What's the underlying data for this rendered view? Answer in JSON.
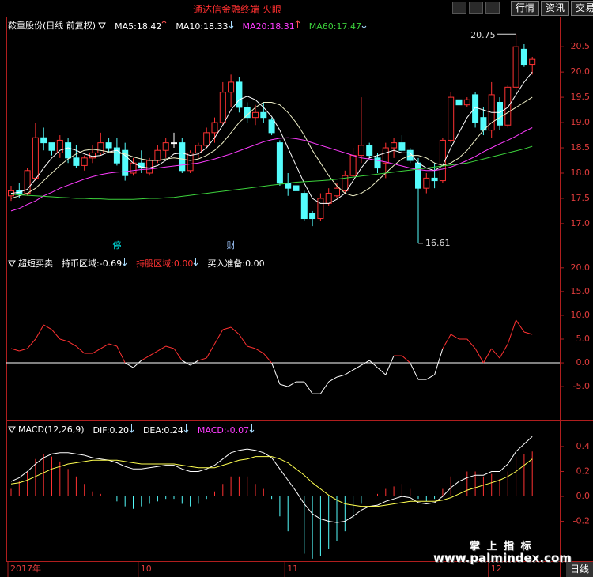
{
  "app": {
    "title": "通达信金融终端 火眼",
    "menu": [
      "行情",
      "资讯",
      "交易"
    ],
    "period": "日线"
  },
  "x_axis": {
    "ticks": [
      {
        "value": 0,
        "label": "2017年"
      },
      {
        "value": 16,
        "label": "10"
      },
      {
        "value": 34,
        "label": "11"
      },
      {
        "value": 59,
        "label": "12"
      }
    ]
  },
  "watermark": {
    "title": "掌 上 指 标",
    "url": "www.palmindex.com"
  },
  "chart_data": [
    {
      "type": "candlestick",
      "title": "鞍重股份(日线 前复权)",
      "up_color": "#ff3232",
      "down_color": "#54fcfc",
      "flat_color": "#ffffff",
      "open": [
        17.55,
        17.65,
        17.6,
        17.9,
        18.7,
        18.6,
        18.4,
        18.6,
        18.3,
        18.15,
        18.3,
        18.4,
        18.6,
        18.5,
        18.45,
        18.0,
        18.2,
        18.0,
        18.25,
        18.45,
        18.6,
        18.6,
        18.05,
        18.4,
        18.55,
        18.8,
        19.0,
        19.6,
        19.8,
        19.3,
        19.1,
        19.2,
        19.05,
        18.6,
        17.8,
        17.75,
        17.6,
        17.2,
        17.1,
        17.4,
        17.55,
        17.65,
        17.95,
        18.35,
        18.55,
        18.3,
        18.2,
        18.5,
        18.6,
        18.45,
        18.2,
        17.7,
        17.9,
        17.85,
        18.65,
        19.45,
        19.35,
        19.55,
        19.1,
        18.85,
        19.4,
        18.95,
        19.7,
        20.45,
        20.15
      ],
      "high": [
        17.75,
        17.8,
        18.1,
        19.0,
        18.9,
        18.6,
        18.75,
        18.7,
        18.55,
        18.35,
        18.55,
        18.8,
        18.7,
        18.7,
        18.6,
        18.3,
        18.45,
        18.3,
        18.55,
        18.7,
        18.8,
        18.7,
        18.45,
        18.6,
        18.9,
        19.1,
        19.8,
        19.95,
        19.9,
        19.4,
        19.35,
        19.4,
        19.1,
        18.65,
        18.0,
        17.9,
        17.65,
        17.25,
        17.6,
        17.7,
        17.8,
        18.05,
        18.5,
        19.5,
        18.6,
        18.4,
        18.6,
        18.7,
        18.75,
        18.5,
        18.3,
        18.0,
        18.2,
        18.7,
        19.6,
        19.5,
        19.5,
        19.6,
        19.3,
        19.8,
        19.5,
        19.75,
        20.75,
        20.55,
        20.3
      ],
      "low": [
        17.45,
        17.5,
        17.55,
        17.85,
        18.45,
        18.35,
        18.3,
        18.2,
        18.1,
        18.05,
        18.2,
        18.35,
        18.4,
        18.15,
        17.85,
        17.95,
        18.0,
        17.95,
        18.2,
        18.3,
        18.5,
        18.0,
        18.0,
        18.3,
        18.5,
        18.6,
        18.95,
        19.3,
        19.2,
        19.0,
        18.95,
        19.0,
        18.75,
        17.75,
        17.55,
        17.6,
        17.05,
        16.95,
        17.05,
        17.35,
        17.5,
        17.6,
        17.9,
        18.2,
        18.3,
        18.0,
        17.9,
        18.3,
        18.4,
        18.2,
        16.61,
        17.6,
        17.7,
        17.8,
        18.6,
        19.3,
        19.3,
        18.9,
        18.75,
        18.7,
        18.85,
        18.9,
        19.6,
        20.1,
        19.95
      ],
      "close": [
        17.65,
        17.6,
        18.05,
        18.7,
        18.6,
        18.45,
        18.65,
        18.3,
        18.15,
        18.3,
        18.4,
        18.6,
        18.5,
        18.2,
        17.95,
        18.2,
        18.1,
        18.25,
        18.45,
        18.6,
        18.6,
        18.05,
        18.4,
        18.55,
        18.8,
        19.0,
        19.6,
        19.8,
        19.3,
        19.1,
        19.2,
        19.1,
        18.8,
        17.8,
        17.7,
        17.65,
        17.1,
        17.1,
        17.5,
        17.6,
        17.7,
        17.95,
        18.35,
        18.55,
        18.35,
        18.1,
        18.5,
        18.6,
        18.45,
        18.25,
        17.7,
        17.9,
        17.85,
        18.65,
        19.5,
        19.35,
        19.45,
        19.0,
        18.85,
        19.55,
        18.95,
        19.7,
        20.5,
        20.15,
        20.25
      ],
      "series": [
        {
          "name": "MA5:",
          "readout": "18.42",
          "trend": "up",
          "color": "#ffffff",
          "values": [
            17.6,
            17.62,
            17.68,
            17.88,
            18.1,
            18.3,
            18.45,
            18.5,
            18.45,
            18.38,
            18.33,
            18.35,
            18.42,
            18.45,
            18.35,
            18.2,
            18.12,
            18.1,
            18.15,
            18.25,
            18.38,
            18.4,
            18.35,
            18.38,
            18.5,
            18.7,
            18.95,
            19.25,
            19.45,
            19.52,
            19.45,
            19.3,
            19.12,
            18.85,
            18.5,
            18.15,
            17.8,
            17.5,
            17.4,
            17.4,
            17.48,
            17.6,
            17.85,
            18.1,
            18.3,
            18.35,
            18.4,
            18.45,
            18.4,
            18.4,
            18.2,
            18.1,
            18.05,
            18.15,
            18.5,
            18.8,
            19.1,
            19.3,
            19.25,
            19.2,
            19.2,
            19.3,
            19.55,
            19.8,
            20.0
          ]
        },
        {
          "name": "MA10:",
          "readout": "18.33",
          "trend": "down",
          "color": "#f0f0c8",
          "values": [
            17.5,
            17.55,
            17.6,
            17.7,
            17.85,
            18.0,
            18.15,
            18.28,
            18.38,
            18.45,
            18.47,
            18.45,
            18.42,
            18.4,
            18.38,
            18.32,
            18.28,
            18.25,
            18.25,
            18.28,
            18.3,
            18.28,
            18.25,
            18.28,
            18.35,
            18.45,
            18.6,
            18.8,
            19.0,
            19.15,
            19.3,
            19.4,
            19.4,
            19.35,
            19.2,
            19.0,
            18.75,
            18.45,
            18.2,
            17.95,
            17.75,
            17.6,
            17.55,
            17.6,
            17.7,
            17.85,
            18.0,
            18.15,
            18.28,
            18.35,
            18.35,
            18.3,
            18.2,
            18.15,
            18.2,
            18.3,
            18.45,
            18.65,
            18.85,
            19.0,
            19.1,
            19.2,
            19.3,
            19.4,
            19.5
          ]
        },
        {
          "name": "MA20:",
          "readout": "18.31",
          "trend": "up",
          "color": "#ff3cff",
          "values": [
            17.25,
            17.3,
            17.38,
            17.45,
            17.55,
            17.62,
            17.7,
            17.76,
            17.82,
            17.88,
            17.93,
            17.97,
            18.0,
            18.02,
            18.03,
            18.05,
            18.07,
            18.08,
            18.1,
            18.12,
            18.14,
            18.16,
            18.18,
            18.2,
            18.24,
            18.28,
            18.33,
            18.38,
            18.44,
            18.5,
            18.56,
            18.62,
            18.66,
            18.69,
            18.7,
            18.68,
            18.65,
            18.6,
            18.55,
            18.5,
            18.45,
            18.4,
            18.35,
            18.3,
            18.28,
            18.25,
            18.22,
            18.18,
            18.14,
            18.1,
            18.07,
            18.05,
            18.05,
            18.08,
            18.12,
            18.18,
            18.25,
            18.33,
            18.42,
            18.5,
            18.58,
            18.65,
            18.73,
            18.82,
            18.9
          ]
        },
        {
          "name": "MA60:",
          "readout": "17.47",
          "trend": "down",
          "color": "#3cd23c",
          "values": [
            17.58,
            17.57,
            17.56,
            17.55,
            17.54,
            17.53,
            17.52,
            17.51,
            17.5,
            17.5,
            17.49,
            17.49,
            17.48,
            17.48,
            17.48,
            17.48,
            17.49,
            17.5,
            17.5,
            17.51,
            17.52,
            17.54,
            17.56,
            17.58,
            17.6,
            17.62,
            17.64,
            17.66,
            17.68,
            17.7,
            17.72,
            17.74,
            17.76,
            17.78,
            17.8,
            17.82,
            17.83,
            17.84,
            17.85,
            17.86,
            17.88,
            17.9,
            17.92,
            17.94,
            17.96,
            17.98,
            18.0,
            18.02,
            18.04,
            18.06,
            18.08,
            18.1,
            18.12,
            18.14,
            18.16,
            18.18,
            18.2,
            18.24,
            18.28,
            18.32,
            18.36,
            18.4,
            18.44,
            18.48,
            18.53
          ]
        }
      ],
      "annotations": [
        {
          "label": "20.75",
          "value": 20.75,
          "index": 62
        },
        {
          "label": "16.61",
          "value": 16.61,
          "index": 50
        }
      ],
      "events": [
        {
          "label": "停",
          "index": 13,
          "color": "#00e0e0"
        },
        {
          "label": "财",
          "index": 27,
          "color": "#a0c8ff"
        }
      ],
      "ylim": [
        16.42,
        20.8
      ],
      "yticks": [
        {
          "value": 17,
          "label": "17.0"
        },
        17.5,
        {
          "value": 18,
          "label": "18.0"
        },
        18.5,
        {
          "value": 19,
          "label": "19.0"
        },
        19.5,
        {
          "value": 20,
          "label": "20.0"
        },
        20.5
      ]
    },
    {
      "type": "line",
      "title": "超短买卖",
      "readouts": [
        {
          "name": "持币区域:",
          "value": "-0.69",
          "trend": "down",
          "color": "#ffffff"
        },
        {
          "name": "持股区域:",
          "value": "0.00",
          "trend": "down",
          "color": "#ff3232"
        },
        {
          "name": "买入准备:",
          "value": "0.00",
          "color": "#ffffff"
        }
      ],
      "values": [
        3,
        2.5,
        3,
        5,
        8,
        7,
        5,
        4.5,
        3.5,
        2,
        2,
        3,
        4,
        3.5,
        0,
        -1,
        0.5,
        1.5,
        2.5,
        3.5,
        3,
        0.5,
        -0.5,
        0.5,
        1,
        4,
        7,
        7.5,
        6,
        3.5,
        3,
        2,
        0,
        -4.5,
        -5,
        -4,
        -4,
        -6.5,
        -6.5,
        -4,
        -3,
        -2.5,
        -1.5,
        -0.5,
        0.5,
        -1,
        -2.5,
        1.5,
        1.5,
        0,
        -3.5,
        -3.5,
        -2.5,
        3,
        6,
        5,
        5,
        3,
        0,
        3,
        1,
        4,
        9,
        6.5,
        6
      ],
      "positive_color": "#ff3232",
      "negative_color": "#ffffff",
      "zero_line_color": "#ffffff",
      "ylim": [
        -11.8,
        21.8
      ],
      "yticks": [
        {
          "value": 20,
          "label": "20.0"
        },
        {
          "value": 15,
          "label": "15.0"
        },
        {
          "value": 10,
          "label": "10.0"
        },
        {
          "value": 5,
          "label": "5.0"
        },
        {
          "value": 0,
          "label": "0.0"
        },
        {
          "value": -5,
          "label": "-5.0"
        }
      ]
    },
    {
      "type": "macd",
      "title": "MACD(12,26,9)",
      "series": [
        {
          "name": "DIF:",
          "readout": "0.20",
          "trend": "down",
          "color": "#ffffff",
          "text_color": "#ffffff",
          "values": [
            0.12,
            0.15,
            0.2,
            0.26,
            0.31,
            0.34,
            0.35,
            0.35,
            0.34,
            0.33,
            0.31,
            0.3,
            0.29,
            0.27,
            0.24,
            0.22,
            0.22,
            0.23,
            0.24,
            0.25,
            0.25,
            0.22,
            0.2,
            0.2,
            0.22,
            0.25,
            0.3,
            0.35,
            0.37,
            0.38,
            0.37,
            0.35,
            0.31,
            0.22,
            0.13,
            0.04,
            -0.06,
            -0.14,
            -0.18,
            -0.2,
            -0.21,
            -0.2,
            -0.16,
            -0.11,
            -0.08,
            -0.07,
            -0.04,
            -0.02,
            0,
            -0.01,
            -0.05,
            -0.06,
            -0.05,
            0,
            0.07,
            0.12,
            0.15,
            0.17,
            0.17,
            0.2,
            0.2,
            0.26,
            0.36,
            0.42,
            0.48
          ]
        },
        {
          "name": "DEA:",
          "readout": "0.24",
          "trend": "down",
          "color": "#ffff50",
          "text_color": "#ffffff",
          "values": [
            0.1,
            0.11,
            0.13,
            0.16,
            0.19,
            0.22,
            0.24,
            0.26,
            0.27,
            0.28,
            0.29,
            0.29,
            0.29,
            0.29,
            0.28,
            0.27,
            0.26,
            0.26,
            0.26,
            0.26,
            0.26,
            0.25,
            0.24,
            0.23,
            0.23,
            0.23,
            0.25,
            0.27,
            0.29,
            0.3,
            0.32,
            0.32,
            0.32,
            0.3,
            0.27,
            0.22,
            0.17,
            0.11,
            0.06,
            0.01,
            -0.03,
            -0.06,
            -0.07,
            -0.08,
            -0.08,
            -0.08,
            -0.07,
            -0.06,
            -0.05,
            -0.04,
            -0.04,
            -0.04,
            -0.04,
            -0.03,
            -0.01,
            0.02,
            0.05,
            0.07,
            0.09,
            0.11,
            0.13,
            0.16,
            0.2,
            0.25,
            0.3
          ]
        },
        {
          "name": "MACD:",
          "readout": "-0.07",
          "trend": "down",
          "color": "#ff3cff",
          "text_color": "#ff3cff",
          "style": "histogram",
          "values": [
            0.06,
            0.12,
            0.2,
            0.3,
            0.34,
            0.32,
            0.28,
            0.22,
            0.16,
            0.1,
            0.04,
            0.02,
            0,
            -0.04,
            -0.08,
            -0.1,
            -0.08,
            -0.06,
            -0.04,
            -0.02,
            -0.02,
            -0.06,
            -0.08,
            -0.06,
            -0.02,
            0.04,
            0.1,
            0.16,
            0.16,
            0.16,
            0.1,
            0.06,
            -0.02,
            -0.16,
            -0.28,
            -0.36,
            -0.46,
            -0.5,
            -0.48,
            -0.42,
            -0.36,
            -0.28,
            -0.18,
            -0.06,
            0,
            0.02,
            0.06,
            0.08,
            0.1,
            0.06,
            -0.02,
            -0.04,
            -0.02,
            0.06,
            0.16,
            0.2,
            0.2,
            0.2,
            0.16,
            0.18,
            0.14,
            0.2,
            0.32,
            0.34,
            0.36
          ]
        }
      ],
      "positive_color": "#ff3232",
      "negative_color": "#54fcfc",
      "ylim": [
        -0.52,
        0.59
      ],
      "yticks": [
        0.4,
        0.2,
        {
          "value": 0,
          "label": "0.0"
        },
        -0.2
      ]
    }
  ]
}
